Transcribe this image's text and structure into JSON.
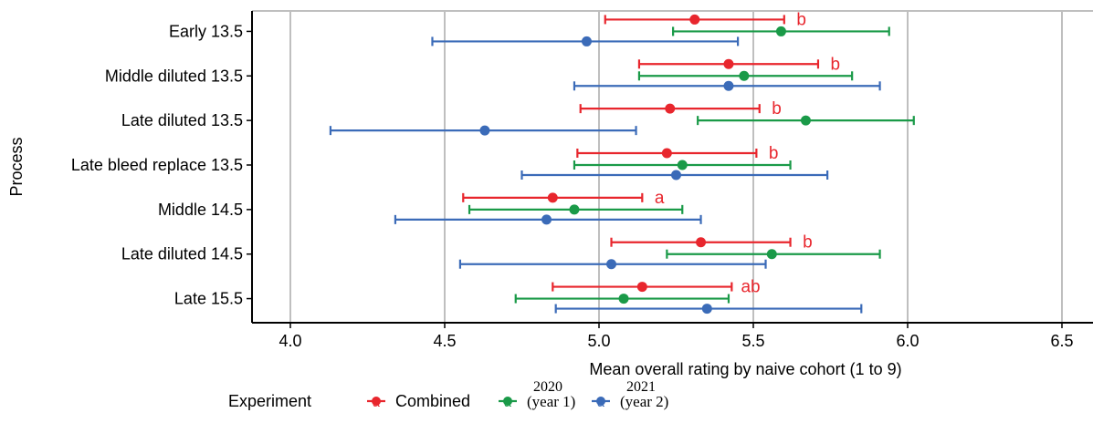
{
  "chart_data": {
    "type": "errorbar",
    "orientation": "horizontal",
    "title": "",
    "xlabel": "Mean overall rating by naive cohort (1 to 9)",
    "ylabel": "Process",
    "xlim": [
      3.88,
      6.6
    ],
    "xticks": [
      4.0,
      4.5,
      5.0,
      5.5,
      6.0,
      6.5
    ],
    "xtick_labels": [
      "4.0",
      "4.5",
      "5.0",
      "5.5",
      "6.0",
      "6.5"
    ],
    "grid": "vertical major lines",
    "categories": [
      "Early 13.5",
      "Middle diluted 13.5",
      "Late diluted 13.5",
      "Late bleed replace 13.5",
      "Middle 14.5",
      "Late diluted 14.5",
      "Late 15.5"
    ],
    "series": [
      {
        "name": "Combined",
        "color": "#e8262d",
        "mean": [
          5.31,
          5.42,
          5.23,
          5.22,
          4.85,
          5.33,
          5.14
        ],
        "lower": [
          5.02,
          5.13,
          4.94,
          4.93,
          4.56,
          5.04,
          4.85
        ],
        "upper": [
          5.6,
          5.71,
          5.52,
          5.51,
          5.14,
          5.62,
          5.43
        ]
      },
      {
        "name": "(year 1)",
        "color": "#1a9a48",
        "mean": [
          5.59,
          5.47,
          5.67,
          5.27,
          4.92,
          5.56,
          5.08
        ],
        "lower": [
          5.24,
          5.13,
          5.32,
          4.92,
          4.58,
          5.22,
          4.73
        ],
        "upper": [
          5.94,
          5.82,
          6.02,
          5.62,
          5.27,
          5.91,
          5.42
        ]
      },
      {
        "name": "(year 2)",
        "color": "#3b6bb8",
        "mean": [
          4.96,
          5.42,
          4.63,
          5.25,
          4.83,
          5.04,
          5.35
        ],
        "lower": [
          4.46,
          4.92,
          4.13,
          4.75,
          4.34,
          4.55,
          4.86
        ],
        "upper": [
          5.45,
          5.91,
          5.12,
          5.74,
          5.33,
          5.54,
          5.85
        ]
      }
    ],
    "annotations": [
      {
        "category": "Early 13.5",
        "text": "b",
        "x": 5.64
      },
      {
        "category": "Middle diluted 13.5",
        "text": "b",
        "x": 5.75
      },
      {
        "category": "Late diluted 13.5",
        "text": "b",
        "x": 5.56
      },
      {
        "category": "Late bleed replace 13.5",
        "text": "b",
        "x": 5.55
      },
      {
        "category": "Middle 14.5",
        "text": "a",
        "x": 5.18
      },
      {
        "category": "Late diluted 14.5",
        "text": "b",
        "x": 5.66
      },
      {
        "category": "Late 15.5",
        "text": "ab",
        "x": 5.46
      }
    ],
    "legend": {
      "title": "Experiment",
      "position": "bottom",
      "key_glyph_letter": "a",
      "years": [
        "",
        "2020",
        "2021"
      ],
      "labels": [
        "Combined",
        "(year 1)",
        "(year 2)"
      ]
    }
  }
}
